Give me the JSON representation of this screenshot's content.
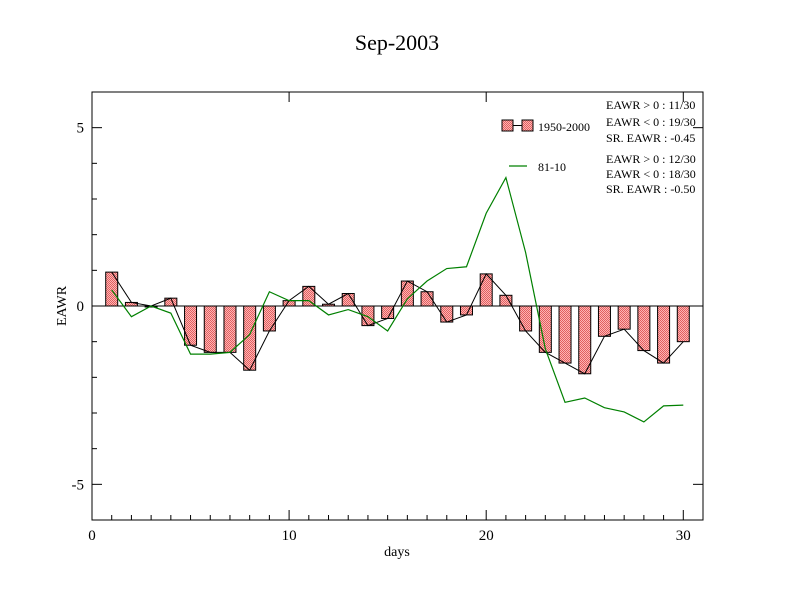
{
  "chart_data": {
    "type": "bar",
    "title": "Sep-2003",
    "xlabel": "days",
    "ylabel": "EAWR",
    "xlim": [
      0,
      31
    ],
    "ylim": [
      -6,
      6
    ],
    "xticks": [
      0,
      10,
      20,
      30
    ],
    "yticks": [
      -5,
      0,
      5
    ],
    "grid": false,
    "legend_position": "top-right",
    "series": [
      {
        "name": "1950-2000",
        "kind": "bar",
        "color": "#ff9b9b",
        "x": [
          1,
          2,
          3,
          4,
          5,
          6,
          7,
          8,
          9,
          10,
          11,
          12,
          13,
          14,
          15,
          16,
          17,
          18,
          19,
          20,
          21,
          22,
          23,
          24,
          25,
          26,
          27,
          28,
          29,
          30
        ],
        "values": [
          0.95,
          0.1,
          0.0,
          0.22,
          -1.1,
          -1.3,
          -1.3,
          -1.8,
          -0.7,
          0.15,
          0.55,
          0.05,
          0.35,
          -0.55,
          -0.35,
          0.7,
          0.4,
          -0.45,
          -0.25,
          0.9,
          0.3,
          -0.7,
          -1.3,
          -1.6,
          -1.9,
          -0.85,
          -0.65,
          -1.25,
          -1.6,
          -1.0
        ]
      },
      {
        "name": "81-10",
        "kind": "line",
        "color": "#008000",
        "x": [
          1,
          2,
          3,
          4,
          5,
          6,
          7,
          8,
          9,
          10,
          11,
          12,
          13,
          14,
          15,
          16,
          17,
          18,
          19,
          20,
          21,
          22,
          23,
          24,
          25,
          26,
          27,
          28,
          29,
          30
        ],
        "values": [
          0.45,
          -0.3,
          0.0,
          -0.2,
          -1.35,
          -1.35,
          -1.3,
          -0.8,
          0.4,
          0.15,
          0.15,
          -0.25,
          -0.1,
          -0.3,
          -0.7,
          0.2,
          0.7,
          1.05,
          1.1,
          2.6,
          3.6,
          1.5,
          -1.2,
          -2.7,
          -2.58,
          -2.85,
          -2.97,
          -3.25,
          -2.8,
          -2.78
        ]
      }
    ],
    "stats": [
      [
        "EAWR > 0 : 11/30",
        "EAWR < 0 : 19/30",
        "SR. EAWR : -0.45"
      ],
      [
        "EAWR > 0 : 12/30",
        "EAWR < 0 : 18/30",
        "SR. EAWR : -0.50"
      ]
    ]
  }
}
